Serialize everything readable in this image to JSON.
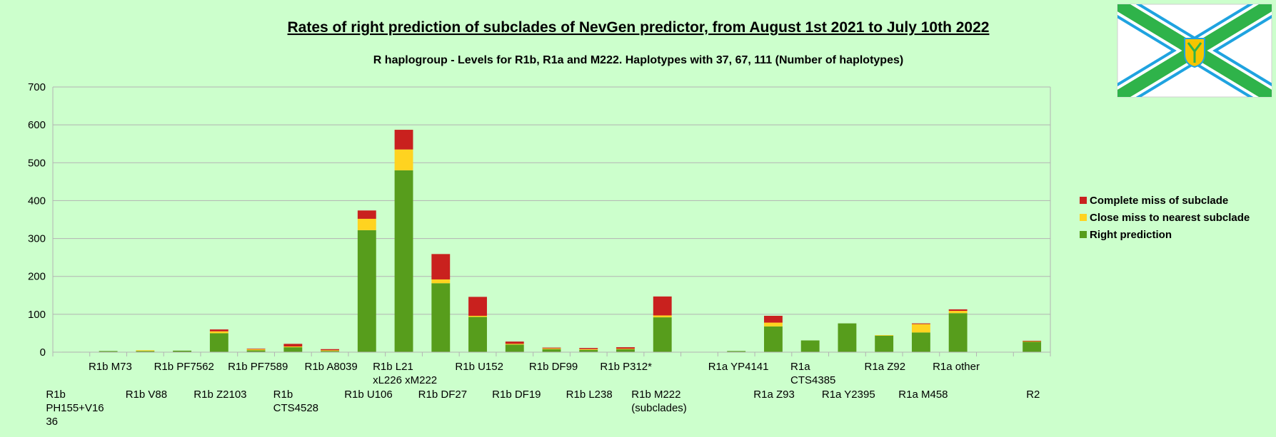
{
  "chart_data": {
    "type": "bar",
    "stacked": true,
    "title": "Rates of right prediction of subclades of NevGen predictor, from August 1st 2021 to July 10th 2022",
    "subtitle": "R haplogroup - Levels for R1b, R1a and M222. Haplotypes with 37, 67, 111 (Number of haplotypes)",
    "ylim": [
      0,
      700
    ],
    "yticks": [
      "0",
      "100",
      "200",
      "300",
      "400",
      "500",
      "600",
      "700"
    ],
    "grid": true,
    "legend_position": "right",
    "categories": [
      "R1b PH155+V1636",
      "R1b M73",
      "R1b V88",
      "R1b PF7562",
      "R1b Z2103",
      "R1b PF7589",
      "R1b CTS4528",
      "R1b A8039",
      "R1b U106",
      "R1b L21 xL226 xM222",
      "R1b DF27",
      "R1b U152",
      "R1b DF19",
      "R1b DF99",
      "R1b L238",
      "R1b P312*",
      "R1b M222 (subclades)",
      "",
      "R1a YP4141",
      "R1a Z93",
      "R1a CTS4385",
      "R1a Y2395",
      "R1a Z92",
      "R1a M458",
      "R1a other",
      "",
      "R2"
    ],
    "category_label_lines": [
      [
        "R1b",
        "PH155+V16",
        "36"
      ],
      [
        "R1b M73"
      ],
      [
        "R1b V88"
      ],
      [
        "R1b PF7562"
      ],
      [
        "R1b Z2103"
      ],
      [
        "R1b PF7589"
      ],
      [
        "R1b",
        "CTS4528"
      ],
      [
        "R1b A8039"
      ],
      [
        "R1b U106"
      ],
      [
        "R1b L21",
        "xL226 xM222"
      ],
      [
        "R1b DF27"
      ],
      [
        "R1b U152"
      ],
      [
        "R1b DF19"
      ],
      [
        "R1b DF99"
      ],
      [
        "R1b L238"
      ],
      [
        "R1b P312*"
      ],
      [
        "R1b M222",
        "(subclades)"
      ],
      [],
      [
        "R1a YP4141"
      ],
      [
        "R1a Z93"
      ],
      [
        "R1a",
        "CTS4385"
      ],
      [
        "R1a Y2395"
      ],
      [
        "R1a Z92"
      ],
      [
        "R1a M458"
      ],
      [
        "R1a other"
      ],
      [],
      [
        "R2"
      ]
    ],
    "label_row": [
      1,
      0,
      1,
      0,
      1,
      0,
      1,
      0,
      1,
      0,
      1,
      0,
      1,
      0,
      1,
      0,
      1,
      0,
      0,
      1,
      0,
      1,
      0,
      1,
      0,
      0,
      1
    ],
    "series": [
      {
        "name": "Right prediction",
        "color": "#579d1c",
        "values": [
          1,
          3,
          3,
          4,
          50,
          5,
          13,
          3,
          322,
          480,
          182,
          93,
          20,
          8,
          6,
          8,
          92,
          0,
          3,
          68,
          31,
          76,
          44,
          52,
          103,
          0,
          28
        ]
      },
      {
        "name": "Close miss to nearest subclade",
        "color": "#ffd320",
        "values": [
          0,
          0,
          2,
          0,
          5,
          3,
          2,
          2,
          30,
          55,
          10,
          3,
          2,
          2,
          2,
          1,
          5,
          0,
          0,
          10,
          0,
          0,
          1,
          22,
          6,
          0,
          1
        ]
      },
      {
        "name": "Complete miss of subclade",
        "color": "#c9211e",
        "values": [
          0,
          0,
          0,
          0,
          5,
          1,
          7,
          3,
          22,
          52,
          67,
          50,
          6,
          2,
          3,
          4,
          50,
          0,
          0,
          18,
          0,
          0,
          0,
          2,
          4,
          0,
          1
        ]
      }
    ],
    "legend": [
      "Complete miss of subclade",
      "Close miss to nearest subclade",
      "Right prediction"
    ]
  },
  "colors": {
    "background": "#ccffcc",
    "grid": "#b3b3b3"
  },
  "logo": {
    "type": "flag",
    "white": "#ffffff",
    "green": "#2fb34a",
    "blue": "#1fa3e0",
    "yellow": "#f6c500"
  }
}
